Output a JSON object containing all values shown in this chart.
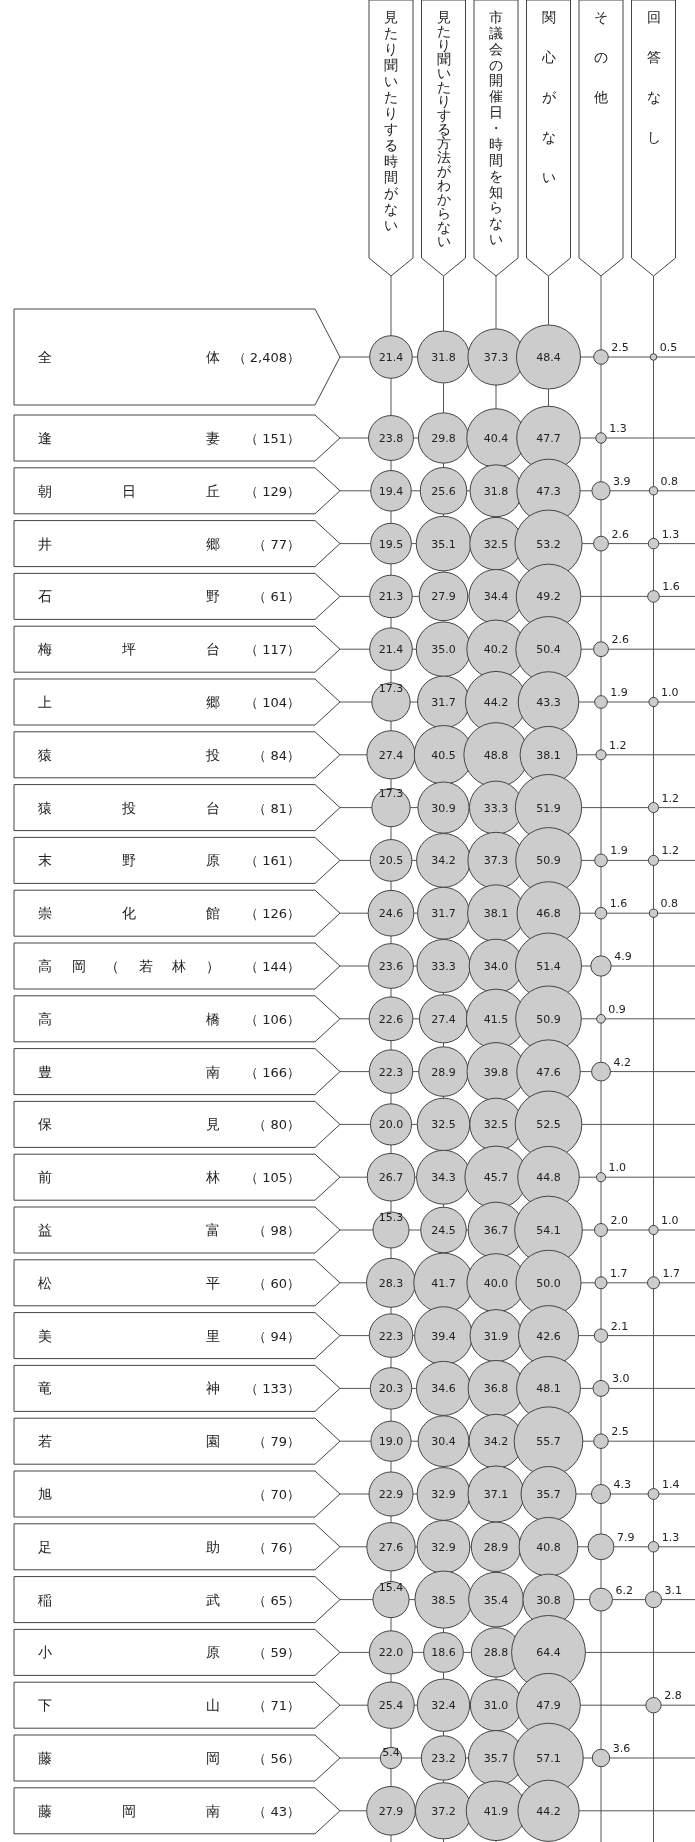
{
  "chart_data": {
    "type": "heatmap",
    "data_labels": true,
    "grid": true,
    "cell_labels": [
      [
        "21.4",
        "31.8",
        "37.3",
        "48.4",
        "2.5",
        "0.5"
      ],
      [
        "23.8",
        "29.8",
        "40.4",
        "47.7",
        "1.3",
        null
      ],
      [
        "19.4",
        "25.6",
        "31.8",
        "47.3",
        "3.9",
        "0.8"
      ],
      [
        "19.5",
        "35.1",
        "32.5",
        "53.2",
        "2.6",
        "1.3"
      ],
      [
        "21.3",
        "27.9",
        "34.4",
        "49.2",
        null,
        "1.6"
      ],
      [
        "21.4",
        "35.0",
        "40.2",
        "50.4",
        "2.6",
        null
      ],
      [
        "17.3",
        "31.7",
        "44.2",
        "43.3",
        "1.9",
        "1.0"
      ],
      [
        "27.4",
        "40.5",
        "48.8",
        "38.1",
        "1.2",
        null
      ],
      [
        "17.3",
        "30.9",
        "33.3",
        "51.9",
        null,
        "1.2"
      ],
      [
        "20.5",
        "34.2",
        "37.3",
        "50.9",
        "1.9",
        "1.2"
      ],
      [
        "24.6",
        "31.7",
        "38.1",
        "46.8",
        "1.6",
        "0.8"
      ],
      [
        "23.6",
        "33.3",
        "34.0",
        "51.4",
        "4.9",
        null
      ],
      [
        "22.6",
        "27.4",
        "41.5",
        "50.9",
        "0.9",
        null
      ],
      [
        "22.3",
        "28.9",
        "39.8",
        "47.6",
        "4.2",
        null
      ],
      [
        "20.0",
        "32.5",
        "32.5",
        "52.5",
        null,
        null
      ],
      [
        "26.7",
        "34.3",
        "45.7",
        "44.8",
        "1.0",
        null
      ],
      [
        "15.3",
        "24.5",
        "36.7",
        "54.1",
        "2.0",
        "1.0"
      ],
      [
        "28.3",
        "41.7",
        "40.0",
        "50.0",
        "1.7",
        "1.7"
      ],
      [
        "22.3",
        "39.4",
        "31.9",
        "42.6",
        "2.1",
        null
      ],
      [
        "20.3",
        "34.6",
        "36.8",
        "48.1",
        "3.0",
        null
      ],
      [
        "19.0",
        "30.4",
        "34.2",
        "55.7",
        "2.5",
        null
      ],
      [
        "22.9",
        "32.9",
        "37.1",
        "35.7",
        "4.3",
        "1.4"
      ],
      [
        "27.6",
        "32.9",
        "28.9",
        "40.8",
        "7.9",
        "1.3"
      ],
      [
        "15.4",
        "38.5",
        "35.4",
        "30.8",
        "6.2",
        "3.1"
      ],
      [
        "22.0",
        "18.6",
        "28.8",
        "64.4",
        null,
        null
      ],
      [
        "25.4",
        "32.4",
        "31.0",
        "47.9",
        null,
        "2.8"
      ],
      [
        "5.4",
        "23.2",
        "35.7",
        "57.1",
        "3.6",
        null
      ],
      [
        "27.9",
        "37.2",
        "41.9",
        "44.2",
        null,
        null
      ]
    ],
    "categories": [
      "見たり聞いたりする時間がない",
      "見たり聞いたりする方法がわからない",
      "市議会の開催日・時間を知らない",
      "関心がない",
      "その他",
      "回答なし"
    ],
    "y_categories": [
      "全体",
      "逢妻",
      "朝日丘",
      "井郷",
      "石野",
      "梅坪台",
      "上郷",
      "猿投",
      "猿投台",
      "末野原",
      "崇化館",
      "高岡（若林）",
      "高橋",
      "豊南",
      "保見",
      "前林",
      "益富",
      "松平",
      "美里",
      "竜神",
      "若園",
      "旭",
      "足助",
      "稲武",
      "小原",
      "下山",
      "藤岡",
      "藤岡南"
    ],
    "y2_categories": [
      "（ 2,408）",
      "（ 151）",
      "（ 129）",
      "（ 77）",
      "（ 61）",
      "（ 117）",
      "（ 104）",
      "（ 84）",
      "（ 81）",
      "（ 161）",
      "（ 126）",
      "（ 144）",
      "（ 106）",
      "（ 166）",
      "（ 80）",
      "（ 105）",
      "（ 98）",
      "（ 60）",
      "（ 94）",
      "（ 133）",
      "（ 79）",
      "（ 70）",
      "（ 76）",
      "（ 65）",
      "（ 59）",
      "（ 71）",
      "（ 56）",
      "（ 43）"
    ],
    "cells": [
      [
        21.4,
        31.8,
        37.3,
        48.4,
        2.5,
        0.5
      ],
      [
        23.8,
        29.8,
        40.4,
        47.7,
        1.3,
        null
      ],
      [
        19.4,
        25.6,
        31.8,
        47.3,
        3.9,
        0.8
      ],
      [
        19.5,
        35.1,
        32.5,
        53.2,
        2.6,
        1.3
      ],
      [
        21.3,
        27.9,
        34.4,
        49.2,
        null,
        1.6
      ],
      [
        21.4,
        35.0,
        40.2,
        50.4,
        2.6,
        null
      ],
      [
        17.3,
        31.7,
        44.2,
        43.3,
        1.9,
        1.0
      ],
      [
        27.4,
        40.5,
        48.8,
        38.1,
        1.2,
        null
      ],
      [
        17.3,
        30.9,
        33.3,
        51.9,
        null,
        1.2
      ],
      [
        20.5,
        34.2,
        37.3,
        50.9,
        1.9,
        1.2
      ],
      [
        24.6,
        31.7,
        38.1,
        46.8,
        1.6,
        0.8
      ],
      [
        23.6,
        33.3,
        34.0,
        51.4,
        4.9,
        null
      ],
      [
        22.6,
        27.4,
        41.5,
        50.9,
        0.9,
        null
      ],
      [
        22.3,
        28.9,
        39.8,
        47.6,
        4.2,
        null
      ],
      [
        20.0,
        32.5,
        32.5,
        52.5,
        null,
        null
      ],
      [
        26.7,
        34.3,
        45.7,
        44.8,
        1.0,
        null
      ],
      [
        15.3,
        24.5,
        36.7,
        54.1,
        2.0,
        1.0
      ],
      [
        28.3,
        41.7,
        40.0,
        50.0,
        1.7,
        1.7
      ],
      [
        22.3,
        39.4,
        31.9,
        42.6,
        2.1,
        null
      ],
      [
        20.3,
        34.6,
        36.8,
        48.1,
        3.0,
        null
      ],
      [
        19.0,
        30.4,
        34.2,
        55.7,
        2.5,
        null
      ],
      [
        22.9,
        32.9,
        37.1,
        35.7,
        4.3,
        1.4
      ],
      [
        27.6,
        32.9,
        28.9,
        40.8,
        7.9,
        1.3
      ],
      [
        15.4,
        38.5,
        35.4,
        30.8,
        6.2,
        3.1
      ],
      [
        22.0,
        18.6,
        28.8,
        64.4,
        null,
        null
      ],
      [
        25.4,
        32.4,
        31.0,
        47.9,
        null,
        2.8
      ],
      [
        5.4,
        23.2,
        35.7,
        57.1,
        3.6,
        null
      ],
      [
        27.9,
        37.2,
        41.9,
        44.2,
        null,
        null
      ]
    ]
  }
}
